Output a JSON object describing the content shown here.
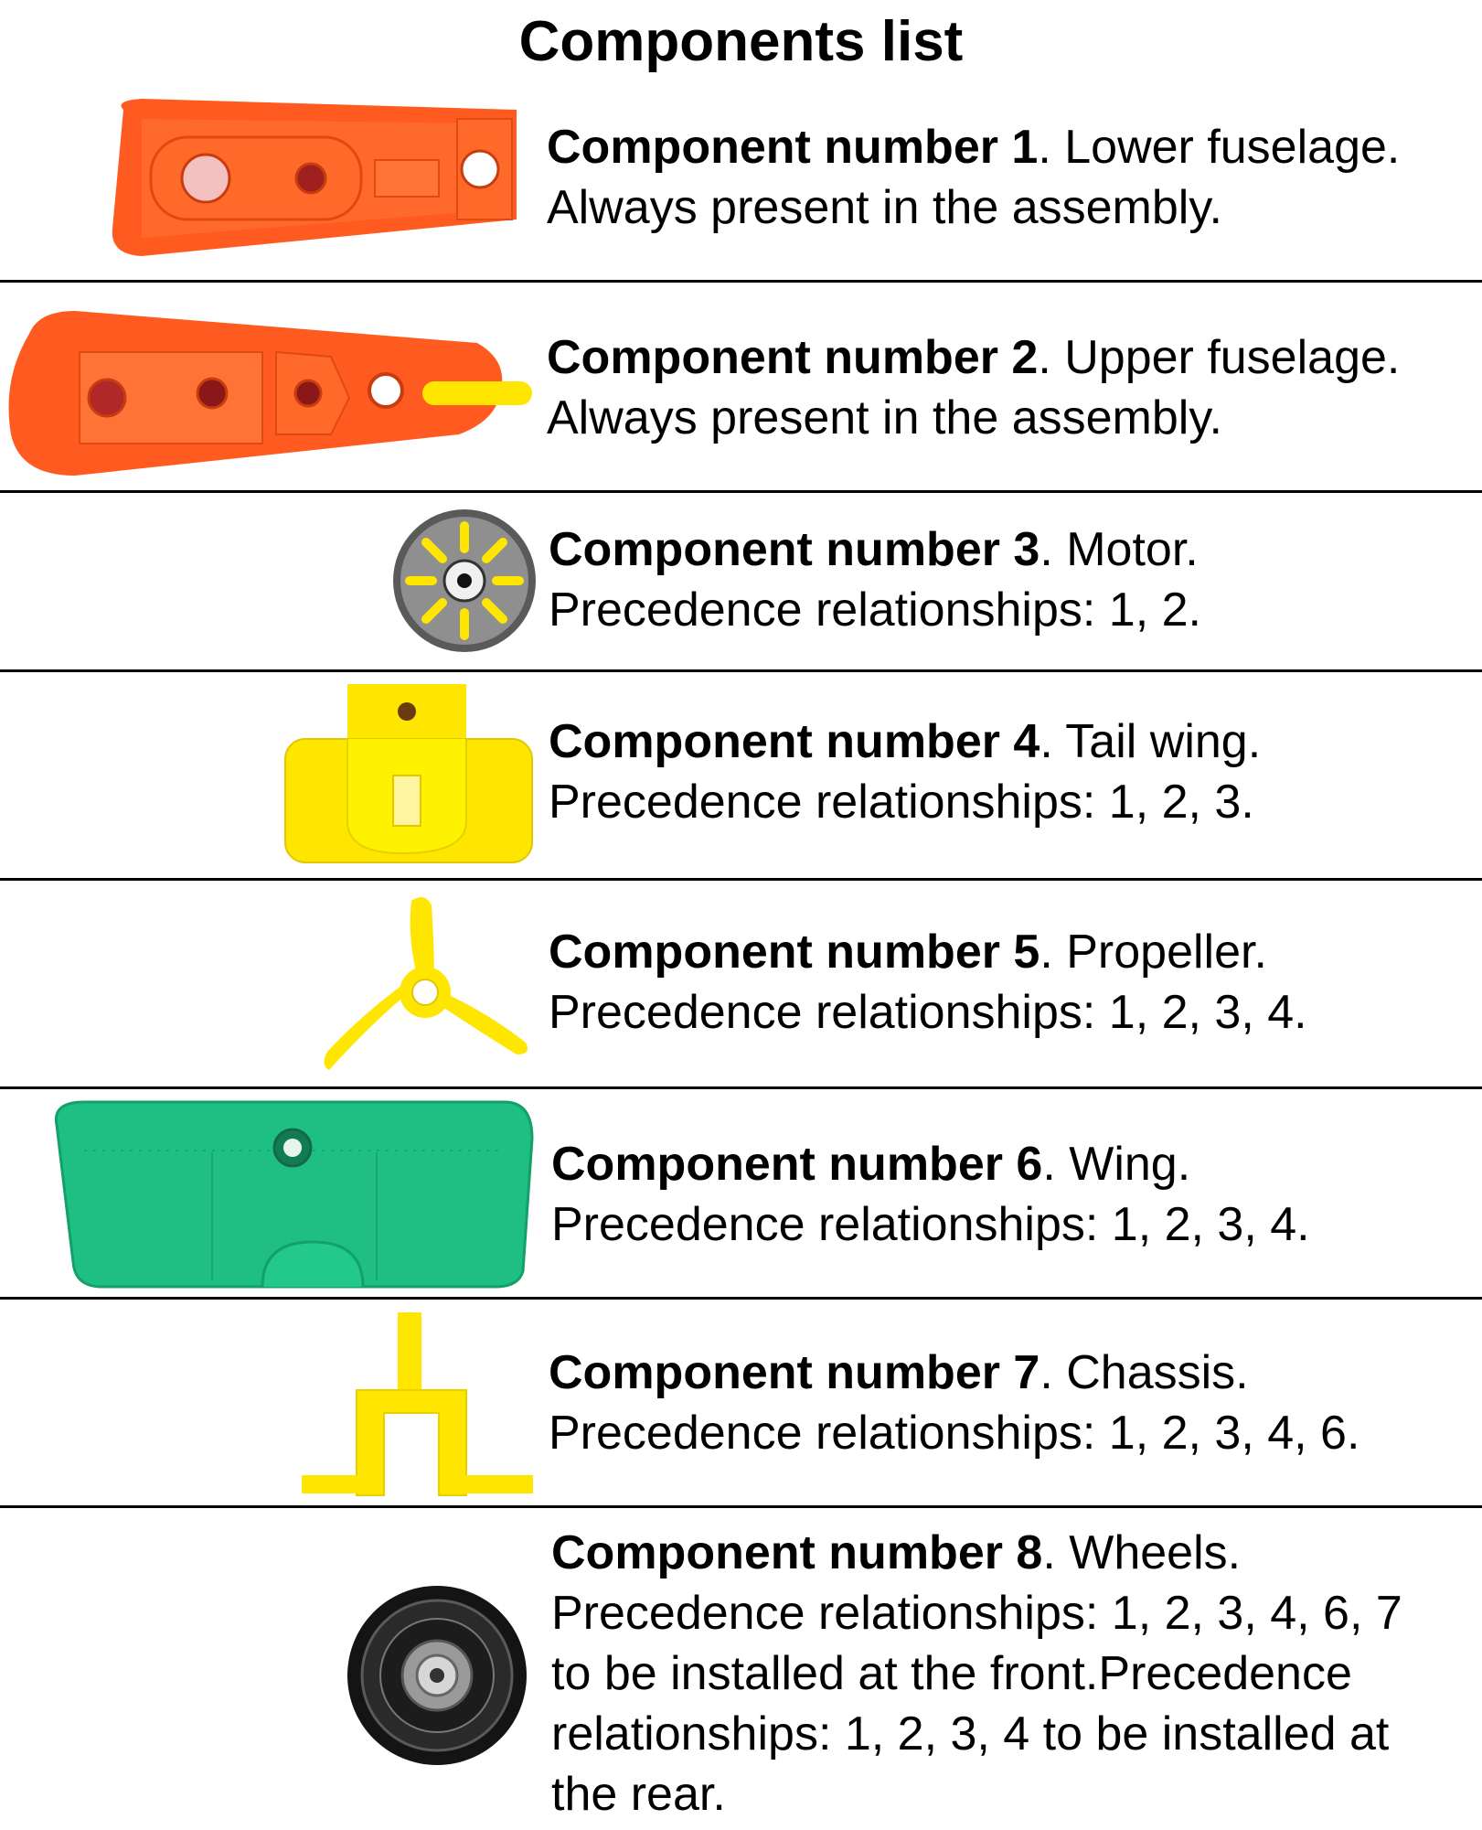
{
  "title": "Components list",
  "components": [
    {
      "number_label": "Component number 1",
      "name": ". Lower fuselage.",
      "details": [
        "Always present in the assembly."
      ],
      "icon": "lower-fuselage-icon",
      "color": "#ff5a1f"
    },
    {
      "number_label": "Component number 2",
      "name": ". Upper fuselage.",
      "details": [
        "Always present in the assembly."
      ],
      "icon": "upper-fuselage-icon",
      "color": "#ff5a1f"
    },
    {
      "number_label": "Component number 3",
      "name": ". Motor.",
      "details": [
        "Precedence relationships: 1, 2."
      ],
      "icon": "motor-icon",
      "color": "#6e6e6e"
    },
    {
      "number_label": "Component number 4",
      "name": ". Tail wing.",
      "details": [
        "Precedence relationships: 1, 2, 3."
      ],
      "icon": "tail-wing-icon",
      "color": "#ffe600"
    },
    {
      "number_label": "Component number 5",
      "name": ". Propeller.",
      "details": [
        "Precedence relationships: 1, 2, 3, 4."
      ],
      "icon": "propeller-icon",
      "color": "#ffe600"
    },
    {
      "number_label": "Component number 6",
      "name": ". Wing.",
      "details": [
        "Precedence relationships: 1, 2, 3, 4."
      ],
      "icon": "wing-icon",
      "color": "#1fbf83"
    },
    {
      "number_label": "Component number 7",
      "name": ". Chassis.",
      "details": [
        "Precedence relationships: 1, 2, 3, 4, 6."
      ],
      "icon": "chassis-icon",
      "color": "#ffe600"
    },
    {
      "number_label": "Component number 8",
      "name": ". Wheels.",
      "details": [
        "Precedence relationships: 1, 2, 3, 4, 6, 7",
        "to be installed at the front.Precedence",
        "relationships: 1, 2, 3, 4 to be installed at",
        "the rear."
      ],
      "icon": "wheels-icon",
      "color": "#222222"
    }
  ]
}
